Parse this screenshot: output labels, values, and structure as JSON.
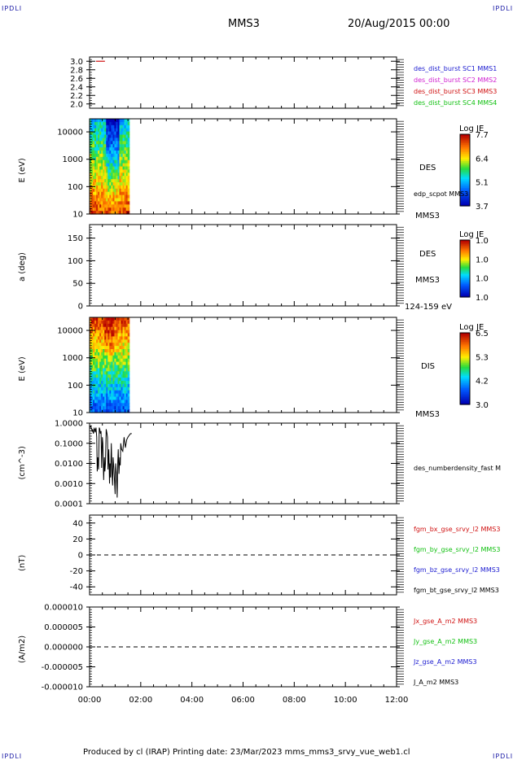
{
  "corner_labels": {
    "tl": "IPDLI",
    "tr": "IPDLI",
    "bl": "IPDLI",
    "br": "IPDLI"
  },
  "header": {
    "spacecraft": "MMS3",
    "datetime": "20/Aug/2015 00:00"
  },
  "footer": {
    "text": "Produced by cl (IRAP)   Printing date: 23/Mar/2023   mms_mms3_srvy_vue_web1.cl"
  },
  "colors": {
    "blue": "#1a1ad0",
    "magenta": "#d020d0",
    "red": "#d01010",
    "green": "#10c010",
    "black": "#000000"
  },
  "chart_data": [
    {
      "type": "line",
      "id": "burst",
      "ylim": [
        1.9,
        3.1
      ],
      "ticks": [
        "3.0",
        "2.8",
        "2.6",
        "2.4",
        "2.2",
        "2.0"
      ],
      "tick_values": [
        3.0,
        2.8,
        2.6,
        2.4,
        2.2,
        2.0
      ],
      "series": [
        {
          "name": "des_dist_burst SC3 MMS3",
          "x": [
            0.25,
            0.6
          ],
          "values": [
            3.0,
            3.0
          ],
          "color": "#d01010"
        }
      ],
      "legend": [
        {
          "text": "des_dist_burst SC1 MMS1",
          "color": "#1a1ad0"
        },
        {
          "text": "des_dist_burst SC2 MMS2",
          "color": "#d020d0"
        },
        {
          "text": "des_dist_burst SC3 MMS3",
          "color": "#d01010"
        },
        {
          "text": "des_dist_burst SC4 MMS4",
          "color": "#10c010"
        }
      ]
    },
    {
      "type": "heatmap",
      "id": "des_energy",
      "ylabel": "E (eV)",
      "ylog": true,
      "ylim": [
        10,
        30000
      ],
      "ticks": [
        "10000",
        "1000",
        "100",
        "10"
      ],
      "tick_values": [
        10000,
        1000,
        100,
        10
      ],
      "data_x_range": [
        0,
        1.55
      ],
      "label": "DES",
      "extra_labels": [
        "edp_scpot MMS3",
        "MMS3"
      ],
      "colorbar": {
        "title": "Log JE",
        "ticks": [
          "7.7",
          "6.4",
          "5.1",
          "3.7"
        ]
      }
    },
    {
      "type": "heatmap",
      "id": "des_pitch",
      "ylabel": "a (deg)",
      "ylim": [
        0,
        180
      ],
      "ticks": [
        "150",
        "100",
        "50",
        "0"
      ],
      "tick_values": [
        150,
        100,
        50,
        0
      ],
      "label": "DES",
      "extra_labels": [
        "MMS3",
        "124-159 eV"
      ],
      "colorbar": {
        "title": "Log JE",
        "ticks": [
          "1.0",
          "1.0",
          "1.0",
          "1.0"
        ]
      }
    },
    {
      "type": "heatmap",
      "id": "dis_energy",
      "ylabel": "E (eV)",
      "ylog": true,
      "ylim": [
        10,
        30000
      ],
      "ticks": [
        "10000",
        "1000",
        "100",
        "10"
      ],
      "tick_values": [
        10000,
        1000,
        100,
        10
      ],
      "data_x_range": [
        0,
        1.55
      ],
      "label": "DIS",
      "extra_labels": [
        "MMS3"
      ],
      "colorbar": {
        "title": "Log JE",
        "ticks": [
          "6.5",
          "5.3",
          "4.2",
          "3.0"
        ]
      }
    },
    {
      "type": "line",
      "id": "density",
      "ylabel": "(cm^-3)",
      "ylog": true,
      "ylim": [
        0.0001,
        1.0
      ],
      "ticks": [
        "1.0000",
        "0.1000",
        "0.0100",
        "0.0010",
        "0.0001"
      ],
      "tick_values": [
        1.0,
        0.1,
        0.01,
        0.001,
        0.0001
      ],
      "legend": [
        {
          "text": "des_numberdensity_fast M",
          "color": "#000000"
        }
      ],
      "series": [
        {
          "name": "des_numberdensity_fast M",
          "color": "#000000",
          "x": [
            0.0,
            0.05,
            0.1,
            0.12,
            0.15,
            0.18,
            0.2,
            0.22,
            0.25,
            0.28,
            0.3,
            0.32,
            0.35,
            0.38,
            0.4,
            0.42,
            0.45,
            0.47,
            0.5,
            0.52,
            0.55,
            0.58,
            0.6,
            0.62,
            0.65,
            0.68,
            0.7,
            0.72,
            0.75,
            0.78,
            0.8,
            0.82,
            0.85,
            0.88,
            0.9,
            0.92,
            0.95,
            0.98,
            1.0,
            1.02,
            1.05,
            1.08,
            1.1,
            1.12,
            1.15,
            1.18,
            1.2,
            1.22,
            1.25,
            1.3,
            1.35,
            1.4,
            1.45,
            1.5,
            1.55,
            1.6,
            1.65
          ],
          "values": [
            0.6,
            0.7,
            0.4,
            0.5,
            0.3,
            0.55,
            0.5,
            0.35,
            0.6,
            0.2,
            0.004,
            0.02,
            0.005,
            0.6,
            0.5,
            0.3,
            0.4,
            0.006,
            0.2,
            0.1,
            0.0015,
            0.02,
            0.004,
            0.01,
            0.5,
            0.3,
            0.2,
            0.005,
            0.05,
            0.001,
            0.01,
            0.002,
            0.1,
            0.003,
            0.0008,
            0.02,
            0.006,
            0.001,
            0.0003,
            0.01,
            0.003,
            0.0002,
            0.01,
            0.05,
            0.003,
            0.02,
            0.008,
            0.1,
            0.05,
            0.04,
            0.2,
            0.06,
            0.15,
            0.2,
            0.25,
            0.3,
            0.3
          ]
        }
      ]
    },
    {
      "type": "line",
      "id": "bfield",
      "ylabel": "(nT)",
      "ylim": [
        -50,
        50
      ],
      "ticks": [
        "40",
        "20",
        "0",
        "-20",
        "-40"
      ],
      "tick_values": [
        40,
        20,
        0,
        -20,
        -40
      ],
      "zero_line": true,
      "legend": [
        {
          "text": "fgm_bx_gse_srvy_l2 MMS3",
          "color": "#d01010"
        },
        {
          "text": "fgm_by_gse_srvy_l2 MMS3",
          "color": "#10c010"
        },
        {
          "text": "fgm_bz_gse_srvy_l2 MMS3",
          "color": "#1a1ad0"
        },
        {
          "text": "fgm_bt_gse_srvy_l2 MMS3",
          "color": "#000000"
        }
      ]
    },
    {
      "type": "line",
      "id": "current",
      "ylabel": "(A/m2)",
      "ylim": [
        -1e-05,
        1e-05
      ],
      "ticks": [
        "0.000010",
        "0.000005",
        "0.000000",
        "-0.000005",
        "-0.000010"
      ],
      "tick_values": [
        1e-05,
        5e-06,
        0,
        -5e-06,
        -1e-05
      ],
      "zero_line": true,
      "legend": [
        {
          "text": "Jx_gse_A_m2 MMS3",
          "color": "#d01010"
        },
        {
          "text": "Jy_gse_A_m2 MMS3",
          "color": "#10c010"
        },
        {
          "text": "Jz_gse_A_m2 MMS3",
          "color": "#1a1ad0"
        },
        {
          "text": "J_A_m2 MMS3",
          "color": "#000000"
        }
      ]
    }
  ],
  "time_axis": {
    "labels": [
      "00:00",
      "02:00",
      "04:00",
      "06:00",
      "08:00",
      "10:00",
      "12:00"
    ],
    "xlim": [
      0,
      12
    ]
  }
}
